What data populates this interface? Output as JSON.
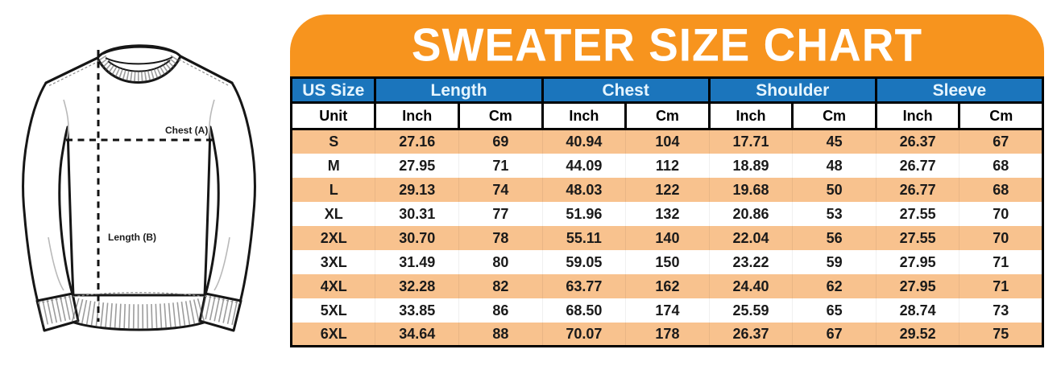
{
  "title": "SWEATER SIZE CHART",
  "diagram": {
    "name": "sweater-technical-sketch",
    "chest_label": "Chest (A)",
    "length_label": "Length (B)"
  },
  "colors": {
    "banner_orange": "#F7941E",
    "header_blue": "#1B75BC",
    "header_text": "#E6F5FE",
    "row_peach": "#F8C28E",
    "border_black": "#000000"
  },
  "table": {
    "group_headers": [
      {
        "label": "US Size",
        "span": 1
      },
      {
        "label": "Length",
        "span": 2
      },
      {
        "label": "Chest",
        "span": 2
      },
      {
        "label": "Shoulder",
        "span": 2
      },
      {
        "label": "Sleeve",
        "span": 2
      }
    ],
    "unit_row": [
      "Unit",
      "Inch",
      "Cm",
      "Inch",
      "Cm",
      "Inch",
      "Cm",
      "Inch",
      "Cm"
    ],
    "rows": [
      [
        "S",
        "27.16",
        "69",
        "40.94",
        "104",
        "17.71",
        "45",
        "26.37",
        "67"
      ],
      [
        "M",
        "27.95",
        "71",
        "44.09",
        "112",
        "18.89",
        "48",
        "26.77",
        "68"
      ],
      [
        "L",
        "29.13",
        "74",
        "48.03",
        "122",
        "19.68",
        "50",
        "26.77",
        "68"
      ],
      [
        "XL",
        "30.31",
        "77",
        "51.96",
        "132",
        "20.86",
        "53",
        "27.55",
        "70"
      ],
      [
        "2XL",
        "30.70",
        "78",
        "55.11",
        "140",
        "22.04",
        "56",
        "27.55",
        "70"
      ],
      [
        "3XL",
        "31.49",
        "80",
        "59.05",
        "150",
        "23.22",
        "59",
        "27.95",
        "71"
      ],
      [
        "4XL",
        "32.28",
        "82",
        "63.77",
        "162",
        "24.40",
        "62",
        "27.95",
        "71"
      ],
      [
        "5XL",
        "33.85",
        "86",
        "68.50",
        "174",
        "25.59",
        "65",
        "28.74",
        "73"
      ],
      [
        "6XL",
        "34.64",
        "88",
        "70.07",
        "178",
        "26.37",
        "67",
        "29.52",
        "75"
      ]
    ]
  },
  "chart_data": {
    "type": "table",
    "title": "SWEATER SIZE CHART",
    "columns": [
      "US Size",
      "Length Inch",
      "Length Cm",
      "Chest Inch",
      "Chest Cm",
      "Shoulder Inch",
      "Shoulder Cm",
      "Sleeve Inch",
      "Sleeve Cm"
    ],
    "rows": [
      [
        "S",
        27.16,
        69,
        40.94,
        104,
        17.71,
        45,
        26.37,
        67
      ],
      [
        "M",
        27.95,
        71,
        44.09,
        112,
        18.89,
        48,
        26.77,
        68
      ],
      [
        "L",
        29.13,
        74,
        48.03,
        122,
        19.68,
        50,
        26.77,
        68
      ],
      [
        "XL",
        30.31,
        77,
        51.96,
        132,
        20.86,
        53,
        27.55,
        70
      ],
      [
        "2XL",
        30.7,
        78,
        55.11,
        140,
        22.04,
        56,
        27.55,
        70
      ],
      [
        "3XL",
        31.49,
        80,
        59.05,
        150,
        23.22,
        59,
        27.95,
        71
      ],
      [
        "4XL",
        32.28,
        82,
        63.77,
        162,
        24.4,
        62,
        27.95,
        71
      ],
      [
        "5XL",
        33.85,
        86,
        68.5,
        174,
        25.59,
        65,
        28.74,
        73
      ],
      [
        "6XL",
        34.64,
        88,
        70.07,
        178,
        26.37,
        67,
        29.52,
        75
      ]
    ]
  }
}
